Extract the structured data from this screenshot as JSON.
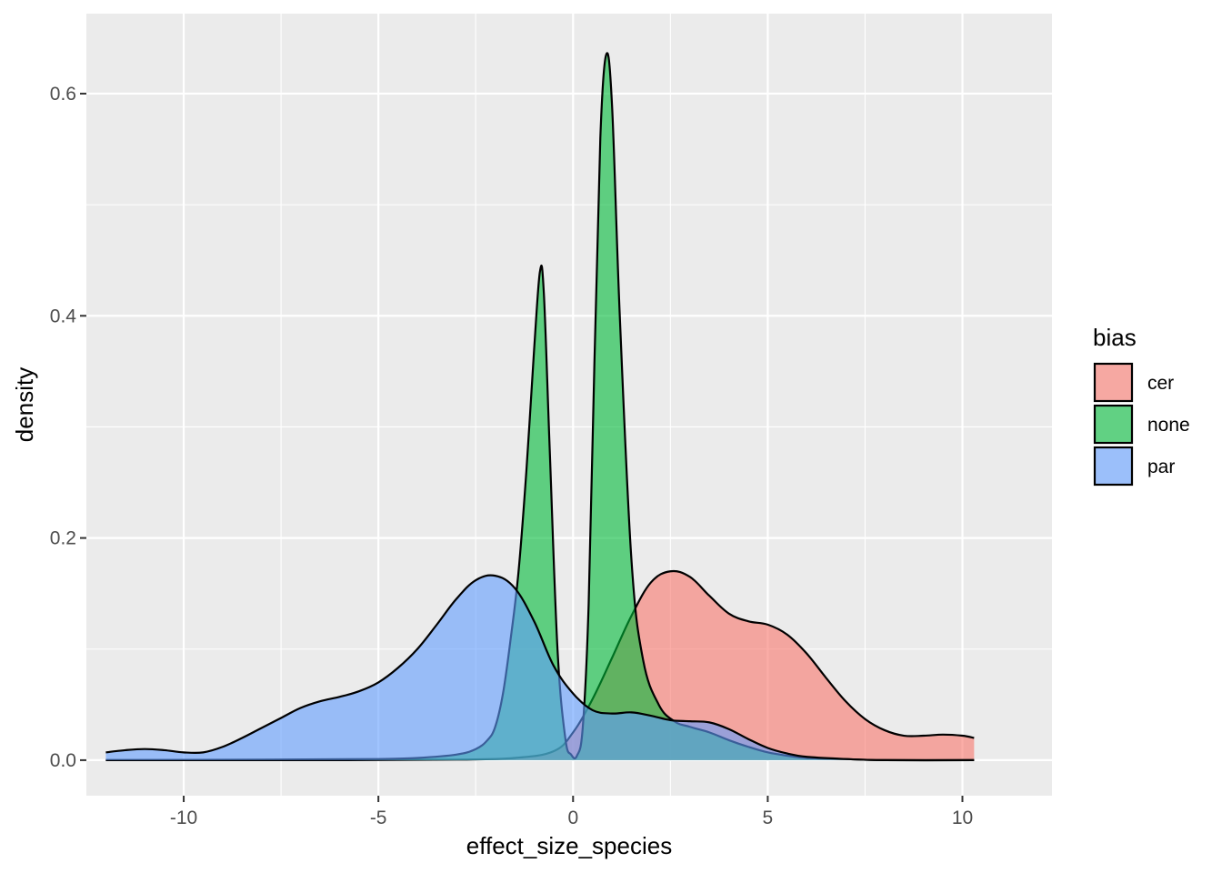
{
  "chart_data": {
    "type": "area",
    "subtype": "density",
    "title": "",
    "xlabel": "effect_size_species",
    "ylabel": "density",
    "xlim": [
      -12.5,
      12.3
    ],
    "ylim": [
      -0.032,
      0.672
    ],
    "x_ticks": [
      -10,
      -5,
      0,
      5,
      10
    ],
    "x_tick_labels": [
      "-10",
      "-5",
      "0",
      "5",
      "10"
    ],
    "y_ticks": [
      0.0,
      0.2,
      0.4,
      0.6
    ],
    "y_tick_labels": [
      "0.0",
      "0.2",
      "0.4",
      "0.6"
    ],
    "grid": true,
    "legend": {
      "title": "bias",
      "position": "right"
    },
    "series": [
      {
        "name": "cer",
        "color": "#F8766D",
        "points": [
          [
            -12,
            0.0
          ],
          [
            -10,
            0.0
          ],
          [
            -6,
            0.0
          ],
          [
            -3,
            0.0005
          ],
          [
            -1.5,
            0.002
          ],
          [
            -0.5,
            0.008
          ],
          [
            0,
            0.025
          ],
          [
            0.5,
            0.055
          ],
          [
            1,
            0.092
          ],
          [
            1.5,
            0.13
          ],
          [
            2,
            0.16
          ],
          [
            2.5,
            0.17
          ],
          [
            3,
            0.165
          ],
          [
            3.5,
            0.148
          ],
          [
            4,
            0.132
          ],
          [
            4.5,
            0.125
          ],
          [
            5,
            0.122
          ],
          [
            5.5,
            0.113
          ],
          [
            6,
            0.096
          ],
          [
            6.5,
            0.074
          ],
          [
            7,
            0.053
          ],
          [
            7.5,
            0.037
          ],
          [
            8,
            0.027
          ],
          [
            8.5,
            0.022
          ],
          [
            9,
            0.022
          ],
          [
            9.5,
            0.023
          ],
          [
            10,
            0.022
          ],
          [
            10.3,
            0.02
          ]
        ]
      },
      {
        "name": "none",
        "color": "#00BA38",
        "points": [
          [
            -12,
            0.0
          ],
          [
            -8,
            0.0005
          ],
          [
            -5,
            0.001
          ],
          [
            -4,
            0.002
          ],
          [
            -3,
            0.005
          ],
          [
            -2.5,
            0.01
          ],
          [
            -2.2,
            0.018
          ],
          [
            -2,
            0.03
          ],
          [
            -1.8,
            0.06
          ],
          [
            -1.6,
            0.11
          ],
          [
            -1.4,
            0.17
          ],
          [
            -1.2,
            0.26
          ],
          [
            -1.0,
            0.37
          ],
          [
            -0.85,
            0.44
          ],
          [
            -0.75,
            0.42
          ],
          [
            -0.6,
            0.28
          ],
          [
            -0.4,
            0.1
          ],
          [
            -0.2,
            0.02
          ],
          [
            -0.05,
            0.005
          ],
          [
            0.1,
            0.004
          ],
          [
            0.25,
            0.03
          ],
          [
            0.4,
            0.14
          ],
          [
            0.55,
            0.36
          ],
          [
            0.7,
            0.56
          ],
          [
            0.85,
            0.635
          ],
          [
            1.0,
            0.59
          ],
          [
            1.2,
            0.4
          ],
          [
            1.5,
            0.18
          ],
          [
            1.8,
            0.09
          ],
          [
            2.2,
            0.05
          ],
          [
            2.6,
            0.035
          ],
          [
            3,
            0.03
          ],
          [
            3.5,
            0.025
          ],
          [
            4,
            0.018
          ],
          [
            4.5,
            0.012
          ],
          [
            5,
            0.007
          ],
          [
            5.5,
            0.004
          ],
          [
            6,
            0.002
          ],
          [
            7,
            0.001
          ],
          [
            8,
            0.0
          ],
          [
            10.3,
            0.0
          ]
        ]
      },
      {
        "name": "par",
        "color": "#619CFF",
        "points": [
          [
            -12,
            0.007
          ],
          [
            -11.5,
            0.009
          ],
          [
            -11,
            0.01
          ],
          [
            -10.5,
            0.009
          ],
          [
            -10,
            0.007
          ],
          [
            -9.5,
            0.007
          ],
          [
            -9,
            0.012
          ],
          [
            -8.5,
            0.02
          ],
          [
            -8,
            0.029
          ],
          [
            -7.5,
            0.038
          ],
          [
            -7,
            0.047
          ],
          [
            -6.5,
            0.053
          ],
          [
            -6,
            0.057
          ],
          [
            -5.5,
            0.062
          ],
          [
            -5,
            0.07
          ],
          [
            -4.5,
            0.083
          ],
          [
            -4,
            0.1
          ],
          [
            -3.5,
            0.122
          ],
          [
            -3,
            0.145
          ],
          [
            -2.5,
            0.162
          ],
          [
            -2,
            0.166
          ],
          [
            -1.5,
            0.155
          ],
          [
            -1,
            0.125
          ],
          [
            -0.5,
            0.085
          ],
          [
            0,
            0.06
          ],
          [
            0.5,
            0.045
          ],
          [
            1,
            0.042
          ],
          [
            1.5,
            0.043
          ],
          [
            2,
            0.04
          ],
          [
            2.5,
            0.036
          ],
          [
            3,
            0.035
          ],
          [
            3.5,
            0.034
          ],
          [
            4,
            0.028
          ],
          [
            4.5,
            0.019
          ],
          [
            5,
            0.011
          ],
          [
            5.5,
            0.006
          ],
          [
            6,
            0.003
          ],
          [
            7,
            0.001
          ],
          [
            8,
            0.0
          ],
          [
            10.3,
            0.0
          ]
        ]
      }
    ]
  }
}
